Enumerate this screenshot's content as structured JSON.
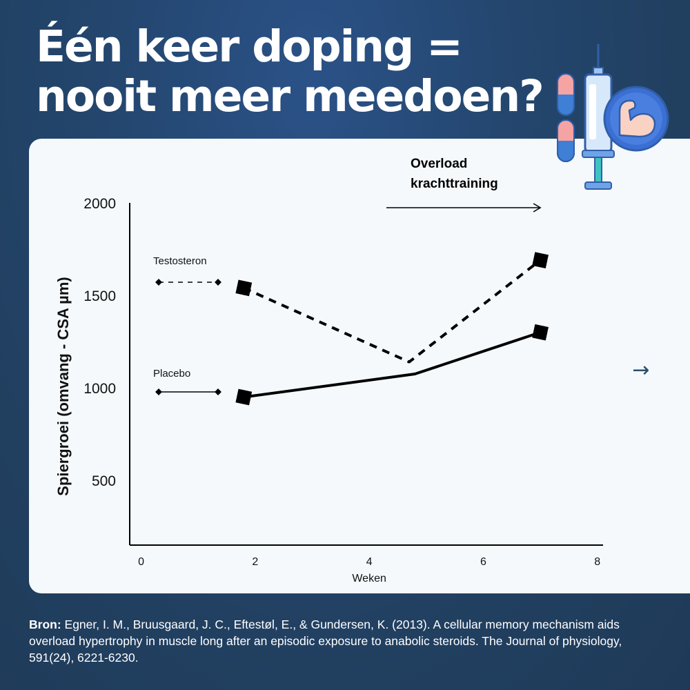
{
  "title": {
    "line1": "Één keer doping =",
    "line2": "nooit meer meedoen?"
  },
  "icon": {
    "name": "doping-syringe-muscle-icon",
    "colors": {
      "syringe": "#3f7fd6",
      "pill_top": "#f5a3a3",
      "muscle_bg": "#3b6fd4",
      "arm": "#f9d2c4"
    }
  },
  "next_button": {
    "glyph": "→",
    "icon": "arrow-right-icon",
    "color": "#2b4d6b"
  },
  "source": {
    "label": "Bron:",
    "text": " Egner, I. M., Bruusgaard, J. C., Eftestøl, E., & Gundersen, K. (2013). A cellular memory mechanism aids overload hypertrophy in muscle long after an episodic exposure to anabolic steroids. The Journal of physiology, 591(24), 6221-6230."
  },
  "chart_data": {
    "type": "line",
    "title": "",
    "xlabel": "Weken",
    "ylabel": "Spiergroei (omvang - CSA µm)",
    "x_ticks": [
      0,
      2,
      4,
      6,
      8
    ],
    "x_tick_labels": [
      "0",
      "2",
      "4",
      "6",
      "8"
    ],
    "y_ticks": [
      500,
      1000,
      1500,
      2000
    ],
    "y_tick_labels": [
      "500",
      "1000",
      "1500",
      "2000"
    ],
    "xlim": [
      -0.2,
      8.1
    ],
    "ylim": [
      150,
      2000
    ],
    "grid": false,
    "annotation": {
      "text_line1": "Overload",
      "text_line2": "krachttraining",
      "arrow_from_x": 4.7,
      "arrow_to_x": 7.0
    },
    "legend": [
      {
        "name": "Testosteron",
        "style": "dashed"
      },
      {
        "name": "Placebo",
        "style": "solid"
      }
    ],
    "series": [
      {
        "name": "Testosteron",
        "style": "dashed",
        "color": "#000000",
        "x": [
          1.8,
          4.7,
          7.0
        ],
        "values": [
          1540,
          1140,
          1690
        ],
        "markers": [
          true,
          false,
          true
        ]
      },
      {
        "name": "Placebo",
        "style": "solid",
        "color": "#000000",
        "x": [
          1.8,
          4.8,
          7.0
        ],
        "values": [
          950,
          1075,
          1300
        ],
        "markers": [
          true,
          false,
          true
        ]
      }
    ]
  }
}
